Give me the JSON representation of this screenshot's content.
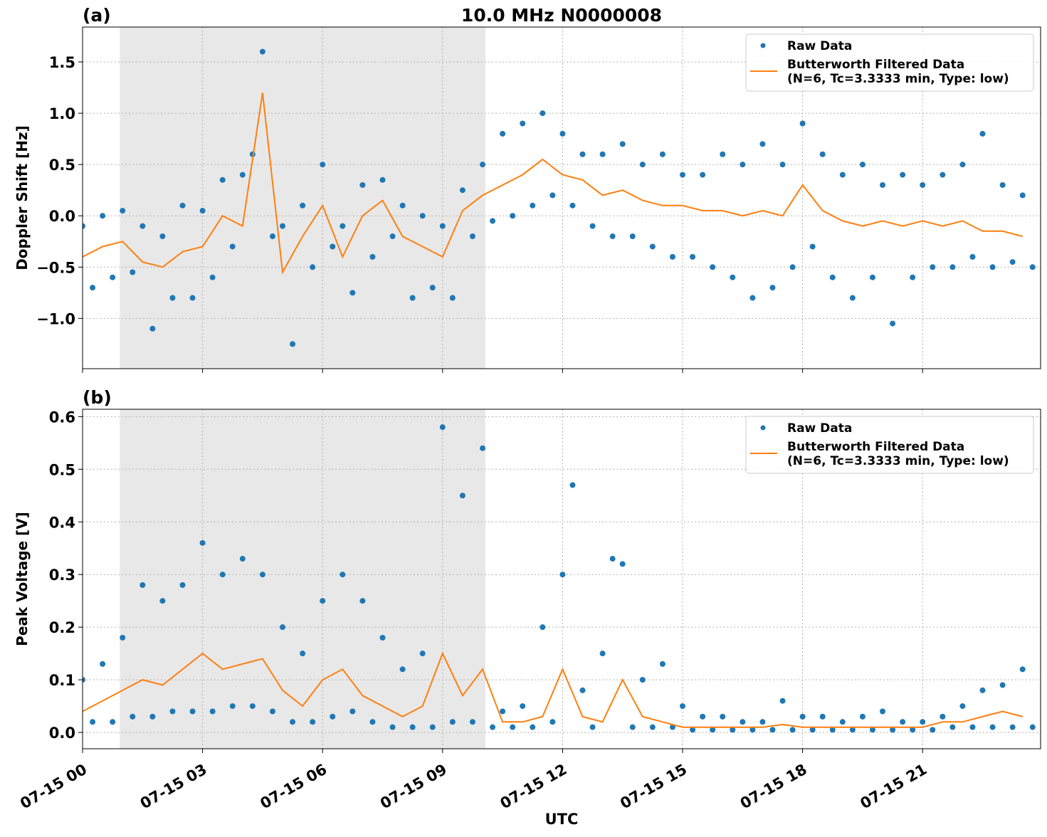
{
  "chart_data": [
    {
      "type": "scatter-line",
      "panel_label": "(a)",
      "title": "10.0 MHz N0000008",
      "ylabel": "Doppler Shift [Hz]",
      "xlim": [
        0,
        23.95
      ],
      "ylim": [
        -1.49,
        1.84
      ],
      "xticks": [
        0,
        3,
        6,
        9,
        12,
        15,
        18,
        21
      ],
      "yticks": [
        {
          "value": -1.0,
          "label": "−1.0"
        },
        {
          "value": -0.5,
          "label": "−0.5"
        },
        {
          "value": 0,
          "label": "0.0"
        },
        0.5,
        {
          "value": 1.0,
          "label": "1.0"
        },
        1.5
      ],
      "grid": true,
      "legend": "upper right",
      "shaded_span": [
        0.93,
        10.07
      ],
      "shade_color": "#e8e8e8",
      "series": [
        {
          "name": "Raw Data",
          "style": "points",
          "color": "#1f77b4",
          "x": [
            0,
            0.25,
            0.5,
            0.75,
            1,
            1.25,
            1.5,
            1.75,
            2,
            2.25,
            2.5,
            2.75,
            3,
            3.25,
            3.5,
            3.75,
            4,
            4.25,
            4.5,
            4.75,
            5,
            5.25,
            5.5,
            5.75,
            6,
            6.25,
            6.5,
            6.75,
            7,
            7.25,
            7.5,
            7.75,
            8,
            8.25,
            8.5,
            8.75,
            9,
            9.25,
            9.5,
            9.75,
            10,
            10.25,
            10.5,
            10.75,
            11,
            11.25,
            11.5,
            11.75,
            12,
            12.25,
            12.5,
            12.75,
            13,
            13.25,
            13.5,
            13.75,
            14,
            14.25,
            14.5,
            14.75,
            15,
            15.25,
            15.5,
            15.75,
            16,
            16.25,
            16.5,
            16.75,
            17,
            17.25,
            17.5,
            17.75,
            18,
            18.25,
            18.5,
            18.75,
            19,
            19.25,
            19.5,
            19.75,
            20,
            20.25,
            20.5,
            20.75,
            21,
            21.25,
            21.5,
            21.75,
            22,
            22.25,
            22.5,
            22.75,
            23,
            23.25,
            23.5,
            23.75
          ],
          "values": [
            -0.1,
            -0.7,
            0.0,
            -0.6,
            0.05,
            -0.55,
            -0.1,
            -1.1,
            -0.2,
            -0.8,
            0.1,
            -0.8,
            0.05,
            -0.6,
            0.35,
            -0.3,
            0.4,
            0.6,
            1.6,
            -0.2,
            -0.1,
            -1.25,
            0.1,
            -0.5,
            0.5,
            -0.3,
            -0.1,
            -0.75,
            0.3,
            -0.4,
            0.35,
            -0.2,
            0.1,
            -0.8,
            0.0,
            -0.7,
            -0.1,
            -0.8,
            0.25,
            -0.2,
            0.5,
            -0.05,
            0.8,
            0.0,
            0.9,
            0.1,
            1.0,
            0.2,
            0.8,
            0.1,
            0.6,
            -0.1,
            0.6,
            -0.2,
            0.7,
            -0.2,
            0.5,
            -0.3,
            0.6,
            -0.4,
            0.4,
            -0.4,
            0.4,
            -0.5,
            0.6,
            -0.6,
            0.5,
            -0.8,
            0.7,
            -0.7,
            0.5,
            -0.5,
            0.9,
            -0.3,
            0.6,
            -0.6,
            0.4,
            -0.8,
            0.5,
            -0.6,
            0.3,
            -1.05,
            0.4,
            -0.6,
            0.3,
            -0.5,
            0.4,
            -0.5,
            0.5,
            -0.4,
            0.8,
            -0.5,
            0.3,
            -0.45,
            0.2,
            -0.5
          ]
        },
        {
          "name": "Butterworth Filtered Data\n(N=6, Tc=3.3333 min, Type: low)",
          "style": "line",
          "color": "#ff7f0e",
          "x": [
            0,
            0.5,
            1,
            1.5,
            2,
            2.5,
            3,
            3.5,
            4,
            4.5,
            5,
            5.5,
            6,
            6.5,
            7,
            7.5,
            8,
            8.5,
            9,
            9.5,
            10,
            10.5,
            11,
            11.5,
            12,
            12.5,
            13,
            13.5,
            14,
            14.5,
            15,
            15.5,
            16,
            16.5,
            17,
            17.5,
            18,
            18.5,
            19,
            19.5,
            20,
            20.5,
            21,
            21.5,
            22,
            22.5,
            23,
            23.5
          ],
          "values": [
            -0.4,
            -0.3,
            -0.25,
            -0.45,
            -0.5,
            -0.35,
            -0.3,
            0.0,
            -0.1,
            1.2,
            -0.55,
            -0.2,
            0.1,
            -0.4,
            0.0,
            0.15,
            -0.2,
            -0.3,
            -0.4,
            0.05,
            0.2,
            0.3,
            0.4,
            0.55,
            0.4,
            0.35,
            0.2,
            0.25,
            0.15,
            0.1,
            0.1,
            0.05,
            0.05,
            0.0,
            0.05,
            0.0,
            0.3,
            0.05,
            -0.05,
            -0.1,
            -0.05,
            -0.1,
            -0.05,
            -0.1,
            -0.05,
            -0.15,
            -0.15,
            -0.2
          ]
        }
      ]
    },
    {
      "type": "scatter-line",
      "panel_label": "(b)",
      "ylabel": "Peak Voltage [V]",
      "xlabel": "UTC",
      "xlim": [
        0,
        23.95
      ],
      "ylim": [
        -0.031,
        0.614
      ],
      "xticks": [
        {
          "value": 0,
          "label": "07-15 00"
        },
        {
          "value": 3,
          "label": "07-15 03"
        },
        {
          "value": 6,
          "label": "07-15 06"
        },
        {
          "value": 9,
          "label": "07-15 09"
        },
        {
          "value": 12,
          "label": "07-15 12"
        },
        {
          "value": 15,
          "label": "07-15 15"
        },
        {
          "value": 18,
          "label": "07-15 18"
        },
        {
          "value": 21,
          "label": "07-15 21"
        }
      ],
      "yticks": [
        {
          "value": 0,
          "label": "0.0"
        },
        0.1,
        0.2,
        0.3,
        0.4,
        0.5,
        0.6
      ],
      "grid": true,
      "legend": "upper right",
      "shaded_span": [
        0.93,
        10.07
      ],
      "shade_color": "#e8e8e8",
      "series": [
        {
          "name": "Raw Data",
          "style": "points",
          "color": "#1f77b4",
          "x": [
            0,
            0.25,
            0.5,
            0.75,
            1,
            1.25,
            1.5,
            1.75,
            2,
            2.25,
            2.5,
            2.75,
            3,
            3.25,
            3.5,
            3.75,
            4,
            4.25,
            4.5,
            4.75,
            5,
            5.25,
            5.5,
            5.75,
            6,
            6.25,
            6.5,
            6.75,
            7,
            7.25,
            7.5,
            7.75,
            8,
            8.25,
            8.5,
            8.75,
            9,
            9.25,
            9.5,
            9.75,
            10,
            10.25,
            10.5,
            10.75,
            11,
            11.25,
            11.5,
            11.75,
            12,
            12.25,
            12.5,
            12.75,
            13,
            13.25,
            13.5,
            13.75,
            14,
            14.25,
            14.5,
            14.75,
            15,
            15.25,
            15.5,
            15.75,
            16,
            16.25,
            16.5,
            16.75,
            17,
            17.25,
            17.5,
            17.75,
            18,
            18.25,
            18.5,
            18.75,
            19,
            19.25,
            19.5,
            19.75,
            20,
            20.25,
            20.5,
            20.75,
            21,
            21.25,
            21.5,
            21.75,
            22,
            22.25,
            22.5,
            22.75,
            23,
            23.25,
            23.5,
            23.75
          ],
          "values": [
            0.1,
            0.02,
            0.13,
            0.02,
            0.18,
            0.03,
            0.28,
            0.03,
            0.25,
            0.04,
            0.28,
            0.04,
            0.36,
            0.04,
            0.3,
            0.05,
            0.33,
            0.05,
            0.3,
            0.04,
            0.2,
            0.02,
            0.15,
            0.02,
            0.25,
            0.03,
            0.3,
            0.04,
            0.25,
            0.02,
            0.18,
            0.01,
            0.12,
            0.01,
            0.15,
            0.01,
            0.58,
            0.02,
            0.45,
            0.02,
            0.54,
            0.01,
            0.04,
            0.01,
            0.05,
            0.01,
            0.2,
            0.02,
            0.3,
            0.47,
            0.08,
            0.01,
            0.15,
            0.33,
            0.32,
            0.01,
            0.1,
            0.01,
            0.13,
            0.01,
            0.05,
            0.005,
            0.03,
            0.005,
            0.03,
            0.005,
            0.02,
            0.005,
            0.02,
            0.005,
            0.06,
            0.005,
            0.03,
            0.005,
            0.03,
            0.005,
            0.02,
            0.005,
            0.03,
            0.005,
            0.04,
            0.005,
            0.02,
            0.005,
            0.02,
            0.005,
            0.03,
            0.01,
            0.05,
            0.01,
            0.08,
            0.01,
            0.09,
            0.01,
            0.12,
            0.01
          ]
        },
        {
          "name": "Butterworth Filtered Data\n(N=6, Tc=3.3333 min, Type: low)",
          "style": "line",
          "color": "#ff7f0e",
          "x": [
            0,
            0.5,
            1,
            1.5,
            2,
            2.5,
            3,
            3.5,
            4,
            4.5,
            5,
            5.5,
            6,
            6.5,
            7,
            7.5,
            8,
            8.5,
            9,
            9.5,
            10,
            10.5,
            11,
            11.5,
            12,
            12.5,
            13,
            13.5,
            14,
            14.5,
            15,
            15.5,
            16,
            16.5,
            17,
            17.5,
            18,
            18.5,
            19,
            19.5,
            20,
            20.5,
            21,
            21.5,
            22,
            22.5,
            23,
            23.5
          ],
          "values": [
            0.04,
            0.06,
            0.08,
            0.1,
            0.09,
            0.12,
            0.15,
            0.12,
            0.13,
            0.14,
            0.08,
            0.05,
            0.1,
            0.12,
            0.07,
            0.05,
            0.03,
            0.05,
            0.15,
            0.07,
            0.12,
            0.02,
            0.02,
            0.03,
            0.12,
            0.03,
            0.02,
            0.1,
            0.03,
            0.02,
            0.01,
            0.01,
            0.01,
            0.01,
            0.01,
            0.015,
            0.01,
            0.01,
            0.01,
            0.01,
            0.01,
            0.01,
            0.01,
            0.02,
            0.02,
            0.03,
            0.04,
            0.03
          ]
        }
      ]
    }
  ]
}
